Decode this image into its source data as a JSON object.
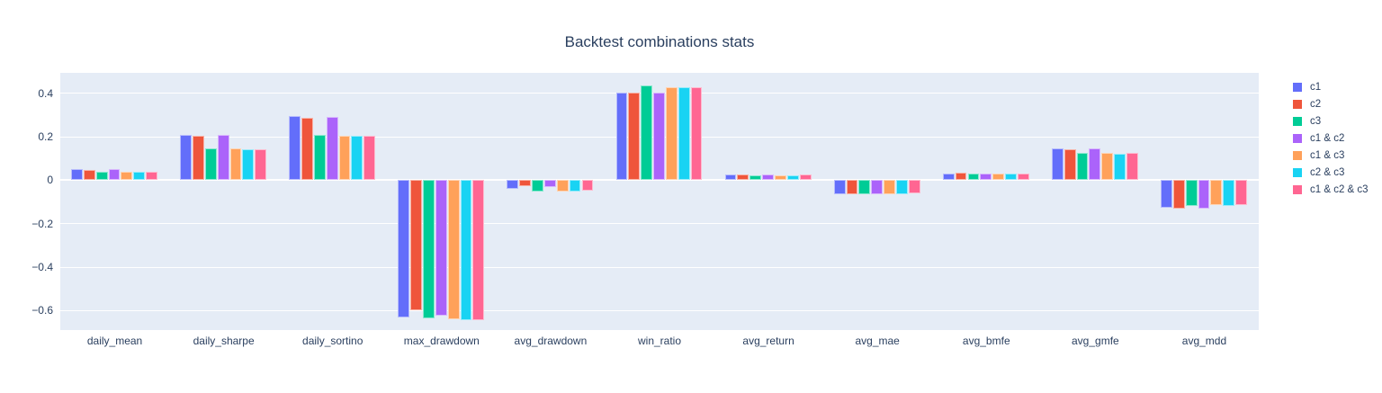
{
  "chart_data": {
    "type": "bar",
    "title": "Backtest combinations stats",
    "categories": [
      "daily_mean",
      "daily_sharpe",
      "daily_sortino",
      "max_drawdown",
      "avg_drawdown",
      "win_ratio",
      "avg_return",
      "avg_mae",
      "avg_bmfe",
      "avg_gmfe",
      "avg_mdd"
    ],
    "series": [
      {
        "name": "c1",
        "color": "#636EFA",
        "values": [
          0.05,
          0.21,
          0.295,
          -0.63,
          -0.038,
          0.405,
          0.025,
          -0.065,
          0.033,
          0.146,
          -0.127
        ]
      },
      {
        "name": "c2",
        "color": "#EF553B",
        "values": [
          0.047,
          0.205,
          0.288,
          -0.6,
          -0.029,
          0.405,
          0.026,
          -0.065,
          0.035,
          0.142,
          -0.131
        ]
      },
      {
        "name": "c3",
        "color": "#00CC96",
        "values": [
          0.04,
          0.148,
          0.211,
          -0.635,
          -0.05,
          0.435,
          0.023,
          -0.065,
          0.03,
          0.128,
          -0.12
        ]
      },
      {
        "name": "c1 & c2",
        "color": "#AB63FA",
        "values": [
          0.05,
          0.21,
          0.294,
          -0.625,
          -0.033,
          0.405,
          0.026,
          -0.065,
          0.033,
          0.146,
          -0.131
        ]
      },
      {
        "name": "c1 & c3",
        "color": "#FFA15A",
        "values": [
          0.04,
          0.145,
          0.206,
          -0.64,
          -0.05,
          0.43,
          0.023,
          -0.065,
          0.03,
          0.125,
          -0.114
        ]
      },
      {
        "name": "c2 & c3",
        "color": "#19D3F3",
        "values": [
          0.04,
          0.141,
          0.203,
          -0.645,
          -0.05,
          0.43,
          0.023,
          -0.065,
          0.03,
          0.121,
          -0.12
        ]
      },
      {
        "name": "c1 & c2 & c3",
        "color": "#FF6692",
        "values": [
          0.04,
          0.141,
          0.203,
          -0.645,
          -0.046,
          0.43,
          0.026,
          -0.06,
          0.032,
          0.125,
          -0.114
        ]
      }
    ],
    "xlabel": "",
    "ylabel": "",
    "ylim": [
      -0.69,
      0.495
    ],
    "yticks": {
      "values": [
        0.4,
        0.2,
        0,
        -0.2,
        -0.4,
        -0.6
      ],
      "labels": [
        "0.4",
        "0.2",
        "0",
        "−0.2",
        "−0.4",
        "−0.6"
      ]
    },
    "grid": true,
    "legend_position": "right",
    "bar_mode": "group"
  },
  "colors": {
    "plot_background": "#E5ECF6",
    "gridline": "#FFFFFF",
    "text": "#2A3F5F",
    "page_background": "#FFFFFF"
  }
}
